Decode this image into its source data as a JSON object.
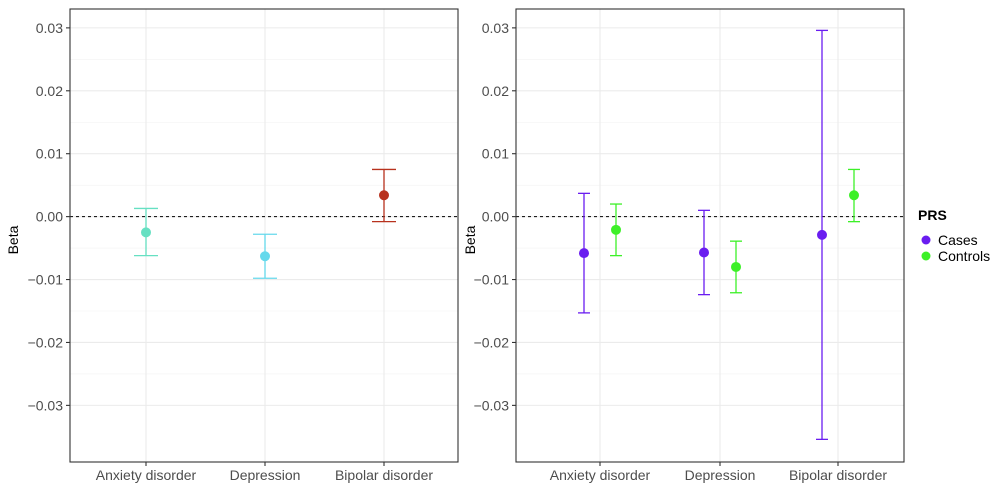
{
  "chart_data": [
    {
      "type": "scatter",
      "style": "point-errorbar",
      "ylabel": "Beta",
      "xlabel": "",
      "ylim": [
        -0.039,
        0.033
      ],
      "yticks": [
        -0.03,
        -0.02,
        -0.01,
        0.0,
        0.01,
        0.02,
        0.03
      ],
      "ytick_labels": [
        "−0.03",
        "−0.02",
        "−0.01",
        "0.00",
        "0.01",
        "0.02",
        "0.03"
      ],
      "categories": [
        "Anxiety disorder",
        "Depression",
        "Bipolar disorder"
      ],
      "reference_line": 0,
      "grid": true,
      "points": [
        {
          "category": "Anxiety disorder",
          "y": -0.0025,
          "lower": -0.0062,
          "upper": 0.0013,
          "color": "#66E0C2"
        },
        {
          "category": "Depression",
          "y": -0.0063,
          "lower": -0.0098,
          "upper": -0.0028,
          "color": "#66D9EC"
        },
        {
          "category": "Bipolar disorder",
          "y": 0.0034,
          "lower": -0.0008,
          "upper": 0.0075,
          "color": "#B8321E"
        }
      ]
    },
    {
      "type": "scatter",
      "style": "point-errorbar",
      "ylabel": "Beta",
      "xlabel": "",
      "ylim": [
        -0.039,
        0.033
      ],
      "yticks": [
        -0.03,
        -0.02,
        -0.01,
        0.0,
        0.01,
        0.02,
        0.03
      ],
      "ytick_labels": [
        "−0.03",
        "−0.02",
        "−0.01",
        "0.00",
        "0.01",
        "0.02",
        "0.03"
      ],
      "categories": [
        "Anxiety disorder",
        "Depression",
        "Bipolar disorder"
      ],
      "reference_line": 0,
      "grid": true,
      "legend": {
        "title": "PRS",
        "placement": "right"
      },
      "series": [
        {
          "name": "Cases",
          "color": "#6A1DF0",
          "values": [
            -0.0058,
            -0.0057,
            -0.0029
          ],
          "lower": [
            -0.0153,
            -0.0124,
            -0.0354
          ],
          "upper": [
            0.0037,
            0.001,
            0.0296
          ]
        },
        {
          "name": "Controls",
          "color": "#3DF028",
          "values": [
            -0.0021,
            -0.008,
            0.0034
          ],
          "lower": [
            -0.0062,
            -0.0121,
            -0.0008
          ],
          "upper": [
            0.002,
            -0.0039,
            0.0075
          ]
        }
      ]
    }
  ]
}
